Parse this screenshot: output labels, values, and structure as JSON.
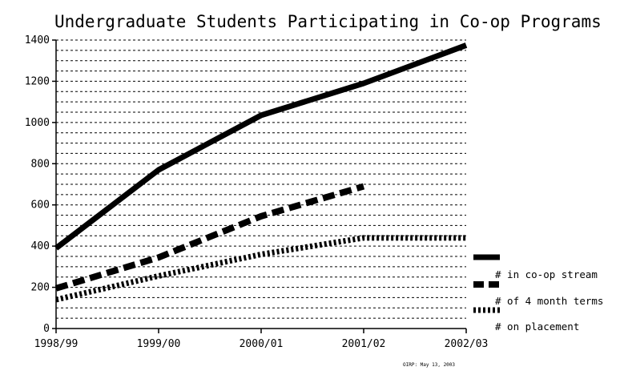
{
  "chart_data": {
    "type": "line",
    "title": "Undergraduate Students Participating in Co-op Programs",
    "categories": [
      "1998/99",
      "1999/00",
      "2000/01",
      "2001/02",
      "2002/03"
    ],
    "ylim": [
      0,
      1400
    ],
    "yticks": [
      0,
      200,
      400,
      600,
      800,
      1000,
      1200,
      1400
    ],
    "grid": "horizontal-dashed",
    "legend_position": "right",
    "series": [
      {
        "name": "# in co-op stream",
        "style": "solid",
        "values": [
          390,
          770,
          1035,
          1190,
          1375
        ]
      },
      {
        "name": "# of 4 month terms",
        "style": "dashed",
        "values": [
          195,
          345,
          545,
          690,
          null
        ]
      },
      {
        "name": "# on placement",
        "style": "dotted",
        "values": [
          140,
          255,
          360,
          440,
          440
        ]
      }
    ],
    "credit": "OIRP: May 13, 2003"
  }
}
